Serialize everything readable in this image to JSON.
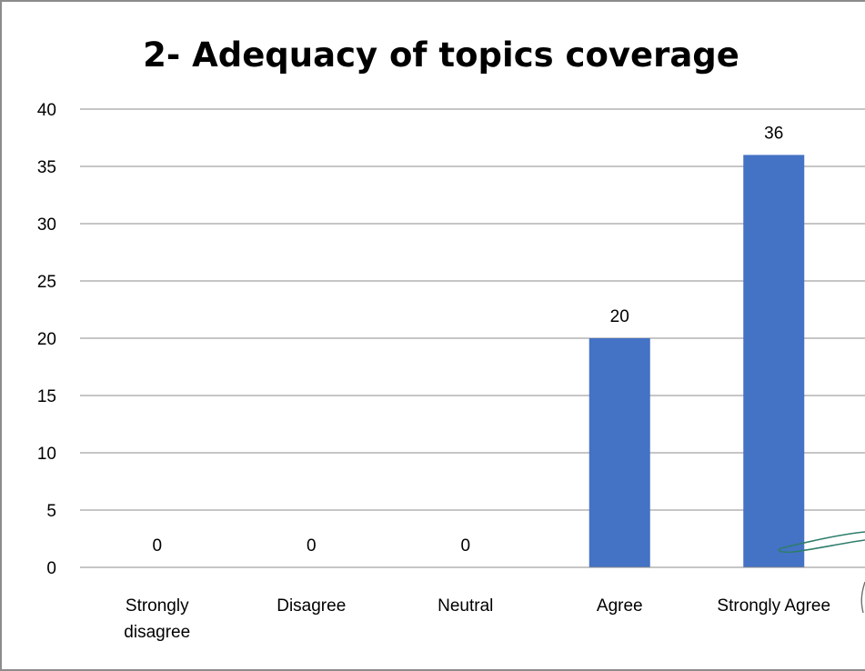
{
  "chart_data": {
    "type": "bar",
    "title": "2- Adequacy of topics coverage",
    "xlabel": "",
    "ylabel": "",
    "categories": [
      [
        "Strongly",
        "disagree"
      ],
      [
        "Disagree"
      ],
      [
        "Neutral"
      ],
      [
        "Agree"
      ],
      [
        "Strongly Agree"
      ]
    ],
    "values": [
      0,
      0,
      0,
      20,
      36
    ],
    "data_labels": [
      "0",
      "0",
      "0",
      "20",
      "36"
    ],
    "ylim": [
      0,
      40
    ],
    "yticks": [
      "0",
      "5",
      "10",
      "15",
      "20",
      "25",
      "30",
      "35",
      "40"
    ],
    "grid": true,
    "legend": "none",
    "bar_color": "#4472C4",
    "grid_color": "#8c8c8c"
  }
}
